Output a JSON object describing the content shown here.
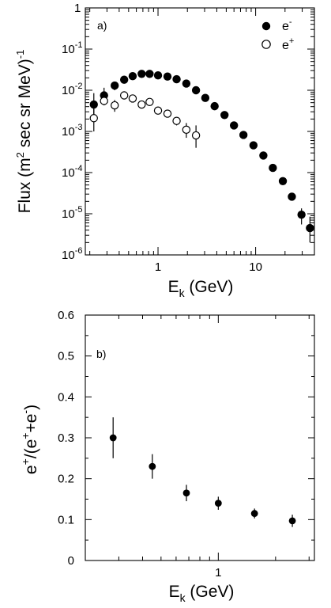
{
  "chart_data": [
    {
      "type": "scatter",
      "panel_label": "a)",
      "xlabel": {
        "main": "E",
        "sub": "k",
        "rest": " (GeV)"
      },
      "ylabel": {
        "pre": "Flux (m",
        "sup1": "2",
        "mid": " sec sr MeV)",
        "sup2": "-1"
      },
      "xscale": "log",
      "yscale": "log",
      "xlim": [
        0.18,
        40
      ],
      "ylim": [
        1e-06,
        1
      ],
      "x_ticks": [
        {
          "value": 1,
          "label": "1"
        },
        {
          "value": 10,
          "label": "10"
        }
      ],
      "y_ticks": [
        {
          "value": 1,
          "base": "1",
          "exp": ""
        },
        {
          "value": 0.1,
          "base": "10",
          "exp": "-1"
        },
        {
          "value": 0.01,
          "base": "10",
          "exp": "-2"
        },
        {
          "value": 0.001,
          "base": "10",
          "exp": "-3"
        },
        {
          "value": 0.0001,
          "base": "10",
          "exp": "-4"
        },
        {
          "value": 1e-05,
          "base": "10",
          "exp": "-5"
        },
        {
          "value": 1e-06,
          "base": "10",
          "exp": "-6"
        }
      ],
      "legend_position": "top-right",
      "series": [
        {
          "name": "e",
          "name_sup": "-",
          "marker": "filled-circle",
          "x": [
            0.22,
            0.28,
            0.36,
            0.45,
            0.55,
            0.68,
            0.82,
            1.0,
            1.25,
            1.55,
            1.95,
            2.45,
            3.05,
            3.8,
            4.8,
            6.0,
            7.5,
            9.5,
            12.0,
            15.0,
            19.0,
            23.5,
            29.5,
            36.0
          ],
          "y": [
            0.0045,
            0.0075,
            0.013,
            0.018,
            0.022,
            0.025,
            0.025,
            0.023,
            0.0215,
            0.0185,
            0.0145,
            0.01,
            0.0065,
            0.0041,
            0.0025,
            0.0014,
            0.00082,
            0.00046,
            0.00026,
            0.00013,
            6.2e-05,
            2.6e-05,
            9.5e-06,
            4.5e-06
          ],
          "y_err_lo": [
            0.0022,
            0.0025,
            0.003,
            0.002,
            0.0015,
            0.0012,
            0.0012,
            0.0011,
            0.001,
            0.0009,
            0.0007,
            0.0005,
            0.0003,
            0.0002,
            0.00012,
            7e-05,
            4e-05,
            2.5e-05,
            1.3e-05,
            6.5e-06,
            3e-06,
            1.3e-06,
            4e-06,
            2.5e-06
          ],
          "y_err_hi": [
            0.004,
            0.004,
            0.003,
            0.002,
            0.0015,
            0.0012,
            0.0012,
            0.0011,
            0.001,
            0.0009,
            0.0007,
            0.0005,
            0.0003,
            0.0002,
            0.00012,
            7e-05,
            4e-05,
            2.5e-05,
            1.3e-05,
            6.5e-06,
            3e-06,
            1.3e-06,
            4e-06,
            4e-06
          ]
        },
        {
          "name": "e",
          "name_sup": "+",
          "marker": "open-circle",
          "x": [
            0.22,
            0.28,
            0.36,
            0.45,
            0.55,
            0.68,
            0.82,
            1.0,
            1.25,
            1.55,
            1.95,
            2.45
          ],
          "y": [
            0.0021,
            0.0055,
            0.0043,
            0.0075,
            0.0063,
            0.0045,
            0.0052,
            0.0032,
            0.0027,
            0.0018,
            0.0011,
            0.0008
          ],
          "y_err_lo": [
            0.0011,
            0.0012,
            0.0013,
            0.0012,
            0.001,
            0.0008,
            0.0007,
            0.0005,
            0.0005,
            0.0004,
            0.0004,
            0.0004
          ],
          "y_err_hi": [
            0.0018,
            0.0015,
            0.0015,
            0.0013,
            0.0011,
            0.0009,
            0.0008,
            0.0006,
            0.0005,
            0.0004,
            0.0005,
            0.0006
          ]
        }
      ]
    },
    {
      "type": "scatter",
      "panel_label": "b)",
      "xlabel": {
        "main": "E",
        "sub": "k",
        "rest": " (GeV)"
      },
      "ylabel": {
        "p1": "e",
        "s1": "+",
        "p2": "/(e",
        "s2": "+",
        "p3": "+e",
        "s3": "-",
        "p4": ")"
      },
      "xscale": "log",
      "ylim": [
        0,
        0.6
      ],
      "x_ticks": [
        {
          "value": 1,
          "label": "1"
        }
      ],
      "y_ticks": [
        {
          "value": 0,
          "label": "0"
        },
        {
          "value": 0.1,
          "label": "0.1"
        },
        {
          "value": 0.2,
          "label": "0.2"
        },
        {
          "value": 0.3,
          "label": "0.3"
        },
        {
          "value": 0.4,
          "label": "0.4"
        },
        {
          "value": 0.5,
          "label": "0.5"
        },
        {
          "value": 0.6,
          "label": "0.6"
        }
      ],
      "series": [
        {
          "marker": "filled-circle",
          "x": [
            0.28,
            0.45,
            0.68,
            1.0,
            1.55,
            2.45
          ],
          "y": [
            0.3,
            0.23,
            0.165,
            0.14,
            0.115,
            0.097
          ],
          "y_err": [
            0.05,
            0.03,
            0.02,
            0.016,
            0.012,
            0.015
          ]
        }
      ]
    }
  ]
}
